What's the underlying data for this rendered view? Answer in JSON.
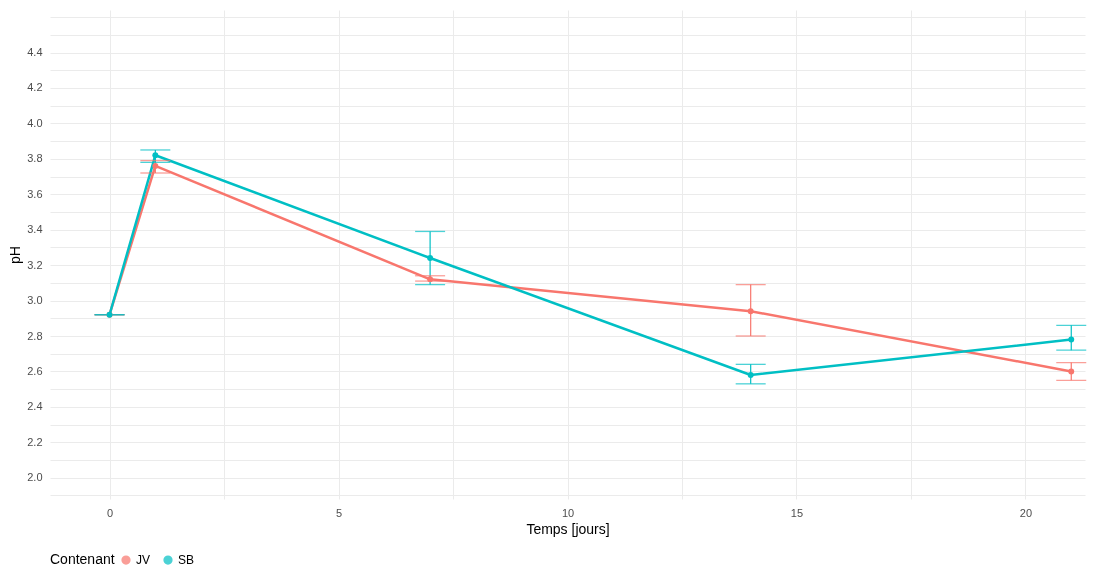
{
  "chart_data": {
    "type": "line",
    "xlabel": "Temps [jours]",
    "ylabel": "pH",
    "legend_title": "Contenant",
    "legend": "bottom",
    "grid": true,
    "marker": "circle",
    "line_style": "solid",
    "x": [
      0,
      1,
      7,
      14,
      21
    ],
    "series": [
      {
        "name": "JV",
        "color": "#f8766d",
        "values": [
          2.92,
          3.76,
          3.12,
          2.94,
          2.6
        ],
        "errors": [
          0,
          [
            3.72,
            3.79
          ],
          [
            3.11,
            3.14
          ],
          [
            2.8,
            3.09
          ],
          [
            2.55,
            2.65
          ]
        ]
      },
      {
        "name": "SB",
        "color": "#00bfc4",
        "values": [
          2.92,
          3.82,
          3.24,
          2.58,
          2.78
        ],
        "errors": [
          0,
          [
            3.78,
            3.85
          ],
          [
            3.09,
            3.39
          ],
          [
            2.53,
            2.64
          ],
          [
            2.72,
            2.86
          ]
        ]
      }
    ],
    "xlim": [
      -1.3,
      21.3
    ],
    "xticks": [
      0,
      {
        "value": 2.5,
        "label": null
      },
      5,
      {
        "value": 7.5,
        "label": null
      },
      10,
      {
        "value": 12.5,
        "label": null
      },
      15,
      {
        "value": 17.5,
        "label": null
      },
      20
    ],
    "ylim": [
      1.88,
      4.64
    ],
    "yticks": [
      {
        "value": 1.9,
        "label": null
      },
      {
        "value": 2.0,
        "label": "2.0"
      },
      {
        "value": 2.1,
        "label": null
      },
      {
        "value": 2.2,
        "label": "2.2"
      },
      {
        "value": 2.3,
        "label": null
      },
      {
        "value": 2.4,
        "label": "2.4"
      },
      {
        "value": 2.5,
        "label": null
      },
      {
        "value": 2.6,
        "label": "2.6"
      },
      {
        "value": 2.7,
        "label": null
      },
      {
        "value": 2.8,
        "label": "2.8"
      },
      {
        "value": 2.9,
        "label": null
      },
      {
        "value": 3.0,
        "label": "3.0"
      },
      {
        "value": 3.1,
        "label": null
      },
      {
        "value": 3.2,
        "label": "3.2"
      },
      {
        "value": 3.3,
        "label": null
      },
      {
        "value": 3.4,
        "label": "3.4"
      },
      {
        "value": 3.5,
        "label": null
      },
      {
        "value": 3.6,
        "label": "3.6"
      },
      {
        "value": 3.7,
        "label": null
      },
      {
        "value": 3.8,
        "label": "3.8"
      },
      {
        "value": 3.9,
        "label": null
      },
      {
        "value": 4.0,
        "label": "4.0"
      },
      {
        "value": 4.1,
        "label": null
      },
      {
        "value": 4.2,
        "label": "4.2"
      },
      {
        "value": 4.3,
        "label": null
      },
      {
        "value": 4.4,
        "label": "4.4"
      },
      {
        "value": 4.5,
        "label": null
      },
      {
        "value": 4.6,
        "label": null
      }
    ]
  }
}
